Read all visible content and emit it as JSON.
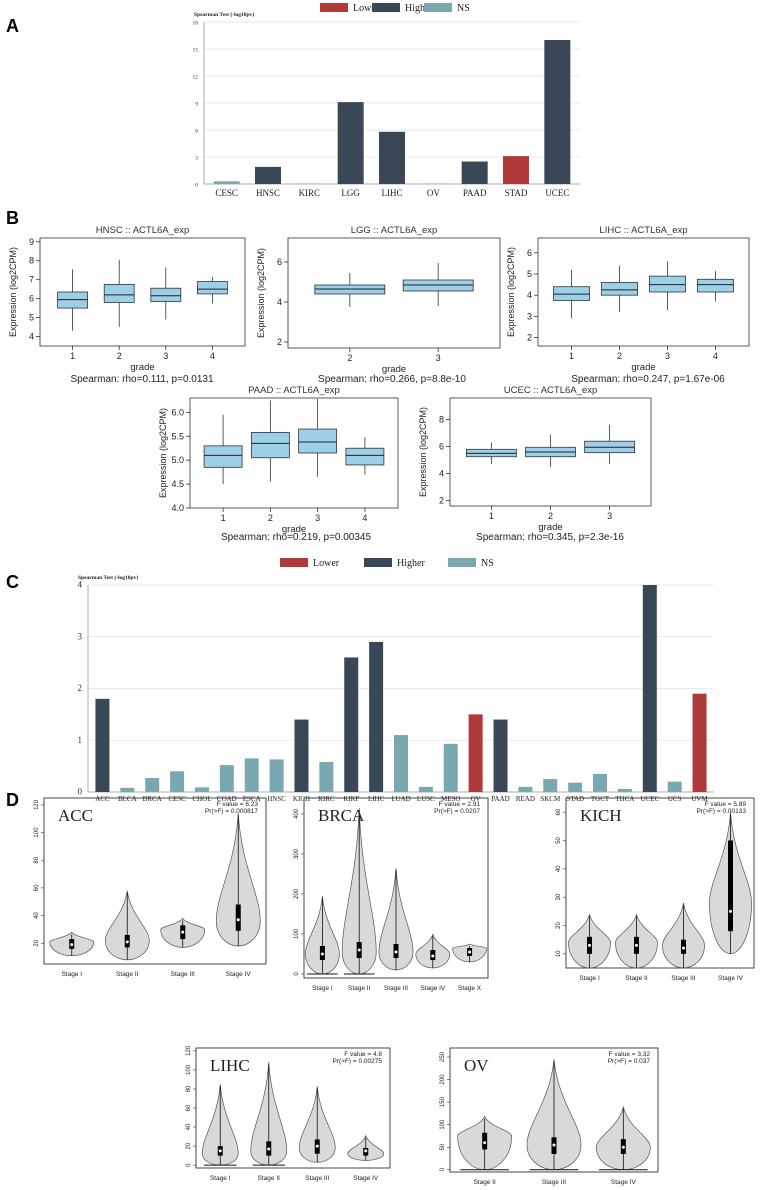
{
  "panels": {
    "A": "A",
    "B": "B",
    "C": "C",
    "D": "D"
  },
  "colors": {
    "lower": "#b03a3a",
    "higher": "#3a4756",
    "ns": "#7aa8b0",
    "box": "#9ccfe8",
    "violin": "#d9d9d9"
  },
  "chart_data": [
    {
      "id": "A",
      "type": "bar",
      "ylabel": "Spearman Test (-log10pv)",
      "ylim": [
        0,
        18
      ],
      "yticks": [
        0,
        3,
        6,
        9,
        12,
        15,
        18
      ],
      "legend": [
        {
          "label": "Lower",
          "status": "lower"
        },
        {
          "label": "Higher",
          "status": "higher"
        },
        {
          "label": "NS",
          "status": "ns"
        }
      ],
      "categories": [
        "CESC",
        "HNSC",
        "KIRC",
        "LGG",
        "LIHC",
        "OV",
        "PAAD",
        "STAD",
        "UCEC"
      ],
      "values": [
        0.3,
        1.9,
        0.05,
        9.1,
        5.8,
        0.05,
        2.5,
        3.1,
        16.0
      ],
      "status": [
        "ns",
        "higher",
        "ns",
        "higher",
        "higher",
        "ns",
        "higher",
        "lower",
        "higher"
      ]
    },
    {
      "id": "B-HNSC",
      "type": "box",
      "title": "HNSC :: ACTL6A_exp",
      "xlabel": "grade",
      "ylabel": "Expression (log2CPM)",
      "ylim": [
        3.5,
        9.2
      ],
      "yticks": [
        4,
        5,
        6,
        7,
        8,
        9
      ],
      "categories": [
        "1",
        "2",
        "3",
        "4"
      ],
      "boxes": [
        {
          "min": 4.3,
          "q1": 5.5,
          "median": 5.95,
          "q3": 6.35,
          "max": 7.55
        },
        {
          "min": 4.5,
          "q1": 5.8,
          "median": 6.2,
          "q3": 6.75,
          "max": 8.05
        },
        {
          "min": 4.9,
          "q1": 5.85,
          "median": 6.15,
          "q3": 6.55,
          "max": 7.65
        },
        {
          "min": 5.75,
          "q1": 6.25,
          "median": 6.5,
          "q3": 6.9,
          "max": 7.15
        }
      ],
      "stat": "Spearman: rho=0.111, p=0.0131"
    },
    {
      "id": "B-LGG",
      "type": "box",
      "title": "LGG :: ACTL6A_exp",
      "xlabel": "grade",
      "ylabel": "Expression (log2CPM)",
      "ylim": [
        1.7,
        7.2
      ],
      "yticks": [
        2,
        4,
        6
      ],
      "categories": [
        "2",
        "3"
      ],
      "boxes": [
        {
          "min": 3.75,
          "q1": 4.4,
          "median": 4.65,
          "q3": 4.85,
          "max": 5.45
        },
        {
          "min": 3.8,
          "q1": 4.55,
          "median": 4.85,
          "q3": 5.1,
          "max": 5.95
        }
      ],
      "stat": "Spearman: rho=0.266, p=8.8e-10"
    },
    {
      "id": "B-LIHC",
      "type": "box",
      "title": "LIHC :: ACTL6A_exp",
      "xlabel": "grade",
      "ylabel": "Expression (log2CPM)",
      "ylim": [
        1.6,
        6.7
      ],
      "yticks": [
        2,
        3,
        4,
        5,
        6
      ],
      "categories": [
        "1",
        "2",
        "3",
        "4"
      ],
      "boxes": [
        {
          "min": 2.9,
          "q1": 3.75,
          "median": 4.05,
          "q3": 4.4,
          "max": 5.2
        },
        {
          "min": 3.2,
          "q1": 4.0,
          "median": 4.25,
          "q3": 4.6,
          "max": 5.4
        },
        {
          "min": 3.3,
          "q1": 4.15,
          "median": 4.5,
          "q3": 4.9,
          "max": 5.6
        },
        {
          "min": 3.7,
          "q1": 4.15,
          "median": 4.5,
          "q3": 4.75,
          "max": 5.15
        }
      ],
      "stat": "Spearman: rho=0.247, p=1.67e-06"
    },
    {
      "id": "B-PAAD",
      "type": "box",
      "title": "PAAD :: ACTL6A_exp",
      "xlabel": "grade",
      "ylabel": "Expression (log2CPM)",
      "ylim": [
        4.0,
        6.3
      ],
      "yticks": [
        4.0,
        4.5,
        5.0,
        5.5,
        6.0
      ],
      "ytick_labels": [
        "4.0",
        "4.5",
        "5.0",
        "5.5",
        "6.0"
      ],
      "categories": [
        "1",
        "2",
        "3",
        "4"
      ],
      "boxes": [
        {
          "min": 4.5,
          "q1": 4.85,
          "median": 5.1,
          "q3": 5.3,
          "max": 5.95
        },
        {
          "min": 4.55,
          "q1": 5.05,
          "median": 5.35,
          "q3": 5.58,
          "max": 6.25
        },
        {
          "min": 4.65,
          "q1": 5.15,
          "median": 5.38,
          "q3": 5.65,
          "max": 6.28
        },
        {
          "min": 4.7,
          "q1": 4.9,
          "median": 5.1,
          "q3": 5.25,
          "max": 5.48
        }
      ],
      "stat": "Spearman: rho=0.219, p=0.00345"
    },
    {
      "id": "B-UCEC",
      "type": "box",
      "title": "UCEC :: ACTL6A_exp",
      "xlabel": "grade",
      "ylabel": "Expression (log2CPM)",
      "ylim": [
        1.6,
        9.6
      ],
      "yticks": [
        2,
        4,
        6,
        8
      ],
      "categories": [
        "1",
        "2",
        "3"
      ],
      "boxes": [
        {
          "min": 4.7,
          "q1": 5.25,
          "median": 5.5,
          "q3": 5.8,
          "max": 6.3
        },
        {
          "min": 4.5,
          "q1": 5.25,
          "median": 5.6,
          "q3": 5.95,
          "max": 6.9
        },
        {
          "min": 4.7,
          "q1": 5.55,
          "median": 5.95,
          "q3": 6.4,
          "max": 7.6
        }
      ],
      "stat": "Spearman: rho=0.345, p=2.3e-16"
    },
    {
      "id": "C",
      "type": "bar",
      "ylabel": "Spearman Test (-log10pv)",
      "ylim": [
        0,
        4
      ],
      "yticks": [
        0,
        1,
        2,
        3,
        4
      ],
      "legend": [
        {
          "label": "Lower",
          "status": "lower"
        },
        {
          "label": "Higher",
          "status": "higher"
        },
        {
          "label": "NS",
          "status": "ns"
        }
      ],
      "categories": [
        "ACC",
        "BLCA",
        "BRCA",
        "CESC",
        "CHOL",
        "COAD",
        "ESCA",
        "HNSC",
        "KICH",
        "KIRC",
        "KIRP",
        "LIHC",
        "LUAD",
        "LUSC",
        "MESO",
        "OV",
        "PAAD",
        "READ",
        "SKCM",
        "STAD",
        "TGCT",
        "THCA",
        "UCEC",
        "UCS",
        "UVM"
      ],
      "values": [
        1.8,
        0.08,
        0.27,
        0.4,
        0.09,
        0.52,
        0.65,
        0.63,
        1.4,
        0.58,
        2.6,
        2.9,
        1.1,
        0.1,
        0.93,
        1.5,
        1.4,
        0.1,
        0.25,
        0.18,
        0.35,
        0.06,
        4.0,
        0.2,
        1.9
      ],
      "status": [
        "higher",
        "ns",
        "ns",
        "ns",
        "ns",
        "ns",
        "ns",
        "ns",
        "higher",
        "ns",
        "higher",
        "higher",
        "ns",
        "ns",
        "ns",
        "lower",
        "higher",
        "ns",
        "ns",
        "ns",
        "ns",
        "ns",
        "higher",
        "ns",
        "lower"
      ]
    },
    {
      "id": "D-ACC",
      "type": "violin",
      "title": "ACC",
      "f_value": "F value = 6.23",
      "pr": "Pr(>F) = 0.000817",
      "ylim": [
        5,
        125
      ],
      "yticks": [
        20,
        40,
        60,
        80,
        100,
        120
      ],
      "categories": [
        "Stage I",
        "Stage II",
        "Stage III",
        "Stage IV"
      ],
      "violins": [
        {
          "min": 11,
          "max": 28,
          "q1": 16,
          "median": 19,
          "q3": 23,
          "peak": 21
        },
        {
          "min": 8,
          "max": 58,
          "q1": 17,
          "median": 21,
          "q3": 26,
          "peak": 22
        },
        {
          "min": 17,
          "max": 38,
          "q1": 23,
          "median": 28,
          "q3": 33,
          "peak": 30
        },
        {
          "min": 18,
          "max": 114,
          "q1": 29,
          "median": 37,
          "q3": 48,
          "peak": 36
        }
      ]
    },
    {
      "id": "D-BRCA",
      "type": "violin",
      "title": "BRCA",
      "f_value": "F value = 2.91",
      "pr": "Pr(>F) = 0.0207",
      "ylim": [
        -10,
        440
      ],
      "yticks": [
        0,
        100,
        200,
        300,
        400
      ],
      "categories": [
        "Stage I",
        "Stage II",
        "Stage III",
        "Stage IV",
        "Stage X"
      ],
      "violins": [
        {
          "min": 0,
          "max": 195,
          "q1": 35,
          "median": 50,
          "q3": 70,
          "peak": 50
        },
        {
          "min": 0,
          "max": 415,
          "q1": 40,
          "median": 60,
          "q3": 80,
          "peak": 55
        },
        {
          "min": 10,
          "max": 265,
          "q1": 40,
          "median": 55,
          "q3": 75,
          "peak": 55
        },
        {
          "min": 15,
          "max": 100,
          "q1": 35,
          "median": 45,
          "q3": 60,
          "peak": 50
        },
        {
          "min": 30,
          "max": 75,
          "q1": 45,
          "median": 55,
          "q3": 65,
          "peak": 65
        }
      ]
    },
    {
      "id": "D-KICH",
      "type": "violin",
      "title": "KICH",
      "f_value": "F value = 5.89",
      "pr": "Pr(>F) = 0.00133",
      "ylim": [
        5,
        65
      ],
      "yticks": [
        10,
        20,
        30,
        40,
        50,
        60
      ],
      "categories": [
        "Stage I",
        "Stage II",
        "Stage III",
        "Stage IV"
      ],
      "violins": [
        {
          "min": 5,
          "max": 24,
          "q1": 10,
          "median": 13,
          "q3": 16,
          "peak": 14
        },
        {
          "min": 5,
          "max": 24,
          "q1": 10,
          "median": 13,
          "q3": 16,
          "peak": 14
        },
        {
          "min": 5,
          "max": 28,
          "q1": 10,
          "median": 12,
          "q3": 15,
          "peak": 13
        },
        {
          "min": 10,
          "max": 60,
          "q1": 18,
          "median": 25,
          "q3": 50,
          "peak": 28
        }
      ]
    },
    {
      "id": "D-LIHC",
      "type": "violin",
      "title": "LIHC",
      "f_value": "F value = 4.8",
      "pr": "Pr(>F) = 0.00275",
      "ylim": [
        -3,
        123
      ],
      "yticks": [
        0,
        20,
        40,
        60,
        80,
        100,
        120
      ],
      "categories": [
        "Stage I",
        "Stage II",
        "Stage III",
        "Stage IV"
      ],
      "violins": [
        {
          "min": 0,
          "max": 85,
          "q1": 10,
          "median": 15,
          "q3": 20,
          "peak": 12
        },
        {
          "min": 0,
          "max": 108,
          "q1": 10,
          "median": 17,
          "q3": 25,
          "peak": 15
        },
        {
          "min": 3,
          "max": 83,
          "q1": 12,
          "median": 20,
          "q3": 27,
          "peak": 18
        },
        {
          "min": 5,
          "max": 31,
          "q1": 10,
          "median": 15,
          "q3": 18,
          "peak": 12
        }
      ]
    },
    {
      "id": "D-OV",
      "type": "violin",
      "title": "OV",
      "f_value": "F value = 3.32",
      "pr": "Pr(>F) = 0.037",
      "ylim": [
        -5,
        270
      ],
      "yticks": [
        0,
        50,
        100,
        150,
        200,
        250
      ],
      "categories": [
        "Stage II",
        "Stage III",
        "Stage IV"
      ],
      "violins": [
        {
          "min": 0,
          "max": 118,
          "q1": 45,
          "median": 60,
          "q3": 82,
          "peak": 75
        },
        {
          "min": 0,
          "max": 245,
          "q1": 35,
          "median": 55,
          "q3": 72,
          "peak": 55
        },
        {
          "min": 0,
          "max": 140,
          "q1": 35,
          "median": 50,
          "q3": 68,
          "peak": 50
        }
      ]
    }
  ]
}
